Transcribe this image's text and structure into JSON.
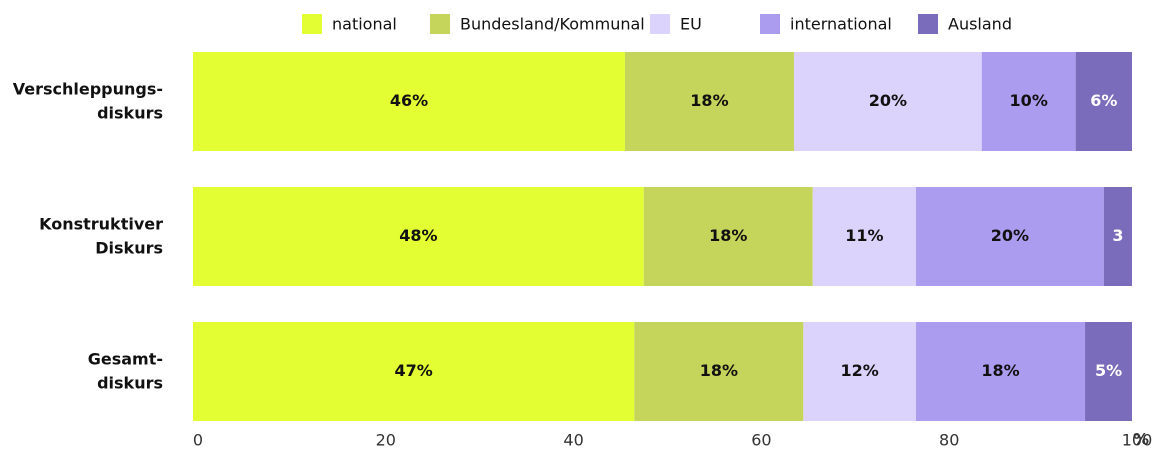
{
  "chart_data": {
    "type": "stacked-bar-horizontal",
    "categories": [
      "Verschleppungs-\ndiskurs",
      "Konstruktiver\nDiskurs",
      "Gesamt-\ndiskurs"
    ],
    "series": [
      {
        "name": "national",
        "color": "#e3ff33",
        "values": [
          46,
          48,
          47
        ],
        "value_labels": [
          "46%",
          "48%",
          "47%"
        ]
      },
      {
        "name": "Bundesland/Kommunal",
        "color": "#c5d45a",
        "values": [
          18,
          18,
          18
        ],
        "value_labels": [
          "18%",
          "18%",
          "18%"
        ]
      },
      {
        "name": "EU",
        "color": "#dcd3fd",
        "values": [
          20,
          11,
          12
        ],
        "value_labels": [
          "20%",
          "11%",
          "12%"
        ]
      },
      {
        "name": "international",
        "color": "#ab9cf0",
        "values": [
          10,
          20,
          18
        ],
        "value_labels": [
          "10%",
          "20%",
          "18%"
        ]
      },
      {
        "name": "Ausland",
        "color": "#7b6bbb",
        "values": [
          6,
          3,
          5
        ],
        "value_labels": [
          "6%",
          "3",
          "5%"
        ]
      }
    ],
    "xlim": [
      0,
      100
    ],
    "xticks": [
      0,
      20,
      40,
      60,
      80,
      100
    ],
    "xlabel": "%",
    "legend": "top"
  }
}
